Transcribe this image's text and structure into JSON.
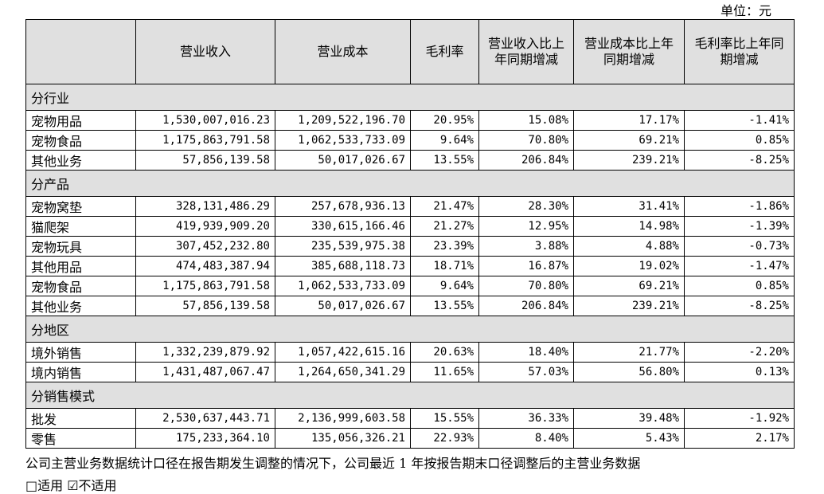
{
  "header": {
    "unit": "单位：元"
  },
  "table": {
    "columns": [
      "",
      "营业收入",
      "营业成本",
      "毛利率",
      "营业收入比上年同期增减",
      "营业成本比上年同期增减",
      "毛利率比上年同期增减"
    ],
    "sections": [
      {
        "title": "分行业",
        "rows": [
          [
            "宠物用品",
            "1,530,007,016.23",
            "1,209,522,196.70",
            "20.95%",
            "15.08%",
            "17.17%",
            "-1.41%"
          ],
          [
            "宠物食品",
            "1,175,863,791.58",
            "1,062,533,733.09",
            "9.64%",
            "70.80%",
            "69.21%",
            "0.85%"
          ],
          [
            "其他业务",
            "57,856,139.58",
            "50,017,026.67",
            "13.55%",
            "206.84%",
            "239.21%",
            "-8.25%"
          ]
        ]
      },
      {
        "title": "分产品",
        "rows": [
          [
            "宠物窝垫",
            "328,131,486.29",
            "257,678,936.13",
            "21.47%",
            "28.30%",
            "31.41%",
            "-1.86%"
          ],
          [
            "猫爬架",
            "419,939,909.20",
            "330,615,166.46",
            "21.27%",
            "12.95%",
            "14.98%",
            "-1.39%"
          ],
          [
            "宠物玩具",
            "307,452,232.80",
            "235,539,975.38",
            "23.39%",
            "3.88%",
            "4.88%",
            "-0.73%"
          ],
          [
            "其他用品",
            "474,483,387.94",
            "385,688,118.73",
            "18.71%",
            "16.87%",
            "19.02%",
            "-1.47%"
          ],
          [
            "宠物食品",
            "1,175,863,791.58",
            "1,062,533,733.09",
            "9.64%",
            "70.80%",
            "69.21%",
            "0.85%"
          ],
          [
            "其他业务",
            "57,856,139.58",
            "50,017,026.67",
            "13.55%",
            "206.84%",
            "239.21%",
            "-8.25%"
          ]
        ]
      },
      {
        "title": "分地区",
        "rows": [
          [
            "境外销售",
            "1,332,239,879.92",
            "1,057,422,615.16",
            "20.63%",
            "18.40%",
            "21.77%",
            "-2.20%"
          ],
          [
            "境内销售",
            "1,431,487,067.47",
            "1,264,650,341.29",
            "11.65%",
            "57.03%",
            "56.80%",
            "0.13%"
          ]
        ]
      },
      {
        "title": "分销售模式",
        "rows": [
          [
            "批发",
            "2,530,637,443.71",
            "2,136,999,603.58",
            "15.55%",
            "36.33%",
            "39.48%",
            "-1.92%"
          ],
          [
            "零售",
            "175,233,364.10",
            "135,056,326.21",
            "22.93%",
            "8.40%",
            "5.43%",
            "2.17%"
          ]
        ]
      }
    ]
  },
  "footer": [
    "公司主营业务数据统计口径在报告期发生调整的情况下，公司最近 1 年按报告期末口径调整后的主营业务数据",
    "□适用 ☑不适用"
  ]
}
